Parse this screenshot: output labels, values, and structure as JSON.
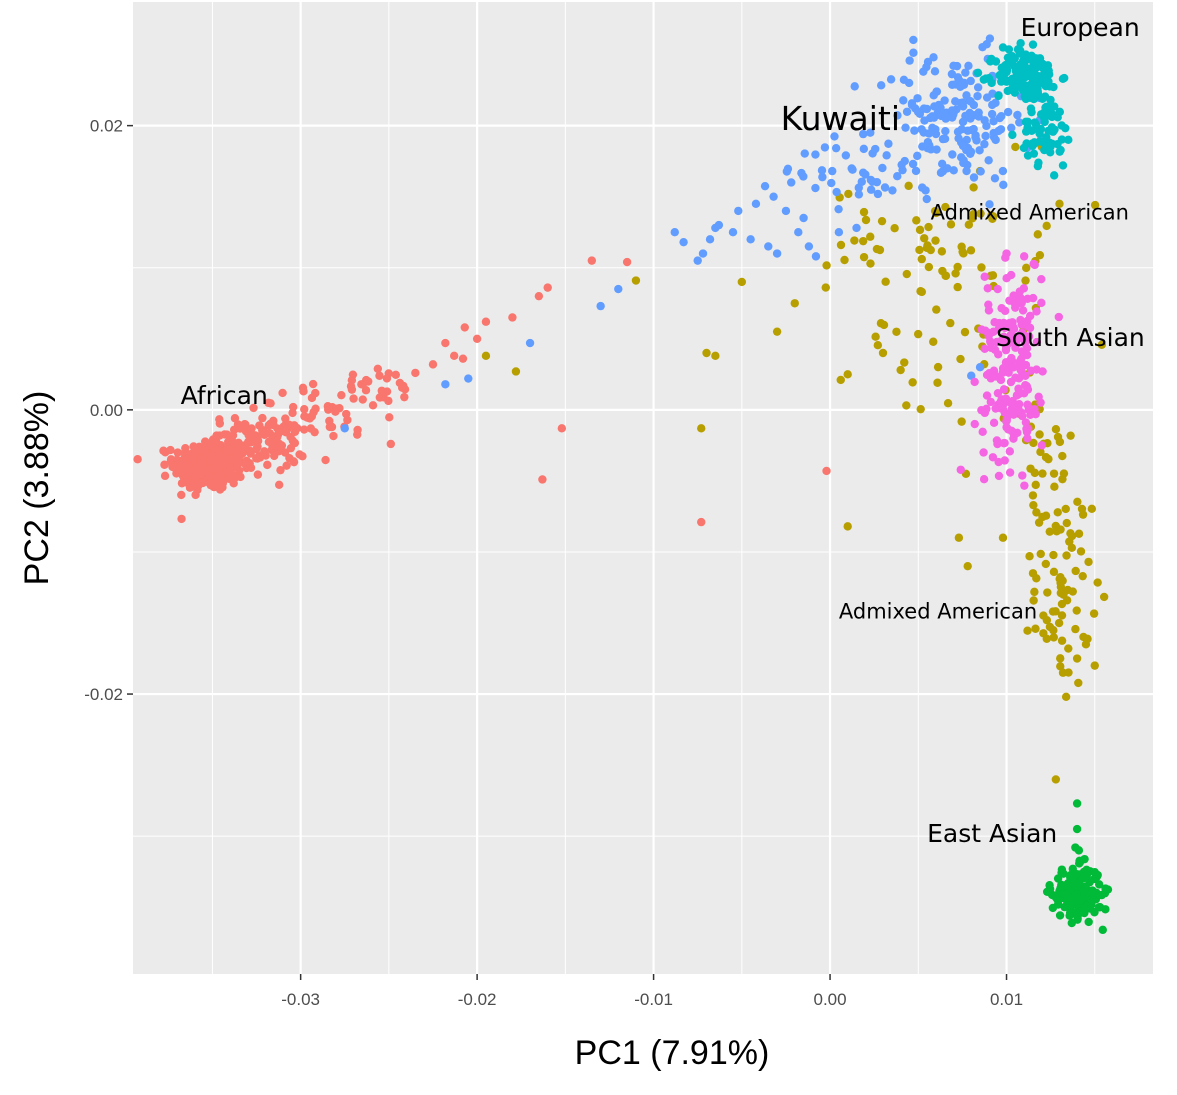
{
  "chart_data": {
    "type": "scatter",
    "title": "",
    "xlabel": "PC1 (7.91%)",
    "ylabel": "PC2 (3.88%)",
    "xlim": [
      -0.0395,
      0.0183
    ],
    "ylim": [
      -0.0397,
      0.0287
    ],
    "grid": true,
    "x_ticks": [
      -0.03,
      -0.02,
      -0.01,
      0.0,
      0.01
    ],
    "x_tick_labels": [
      "-0.03",
      "-0.02",
      "-0.01",
      "0.00",
      "0.01"
    ],
    "y_ticks": [
      -0.02,
      0.0,
      0.02
    ],
    "y_tick_labels": [
      "-0.02",
      "0.00",
      "0.02"
    ],
    "series": [
      {
        "name": "African",
        "color": "#F8766D",
        "clusters": [
          {
            "cx": -0.0352,
            "cy": -0.0039,
            "sx": 0.001,
            "sy": 0.0009,
            "n": 320
          },
          {
            "cx": -0.0325,
            "cy": -0.0024,
            "sx": 0.0014,
            "sy": 0.001,
            "n": 120
          },
          {
            "cx": -0.0285,
            "cy": -0.0003,
            "sx": 0.002,
            "sy": 0.001,
            "n": 45
          },
          {
            "cx": -0.0255,
            "cy": 0.0015,
            "sx": 0.0015,
            "sy": 0.0007,
            "n": 22
          }
        ],
        "points": [
          [
            -0.0218,
            0.0047
          ],
          [
            -0.0213,
            0.0038
          ],
          [
            -0.0225,
            0.0032
          ],
          [
            -0.0208,
            0.0036
          ],
          [
            -0.0235,
            0.0026
          ],
          [
            -0.0195,
            0.0062
          ],
          [
            -0.018,
            0.0065
          ],
          [
            -0.0165,
            0.008
          ],
          [
            -0.016,
            0.0086
          ],
          [
            -0.0135,
            0.0105
          ],
          [
            -0.0115,
            0.0104
          ],
          [
            -0.0152,
            -0.0013
          ],
          [
            -0.0163,
            -0.0049
          ],
          [
            -0.0073,
            -0.0079
          ],
          [
            -0.0002,
            -0.0043
          ],
          [
            -0.0207,
            0.0058
          ],
          [
            -0.02,
            0.005
          ]
        ],
        "label": "African"
      },
      {
        "name": "Kuwaiti",
        "color": "#619CFF",
        "clusters": [
          {
            "cx": 0.007,
            "cy": 0.0205,
            "sx": 0.0022,
            "sy": 0.0023,
            "n": 170
          },
          {
            "cx": 0.0022,
            "cy": 0.017,
            "sx": 0.0024,
            "sy": 0.0013,
            "n": 45
          }
        ],
        "points": [
          [
            0.0092,
            0.0235
          ],
          [
            -0.0042,
            0.0145
          ],
          [
            -0.0032,
            0.015
          ],
          [
            -0.0022,
            0.016
          ],
          [
            -0.0015,
            0.0135
          ],
          [
            -0.0025,
            0.014
          ],
          [
            -0.0052,
            0.014
          ],
          [
            -0.0055,
            0.0125
          ],
          [
            -0.0045,
            0.012
          ],
          [
            -0.0065,
            0.0128
          ],
          [
            -0.0088,
            0.0125
          ],
          [
            -0.0083,
            0.0118
          ],
          [
            -0.0068,
            0.012
          ],
          [
            -0.0072,
            0.011
          ],
          [
            -0.0075,
            0.0105
          ],
          [
            -0.0063,
            0.013
          ],
          [
            -0.0035,
            0.0115
          ],
          [
            -0.003,
            0.011
          ],
          [
            -0.0018,
            0.0125
          ],
          [
            -0.0012,
            0.0115
          ],
          [
            0.0005,
            0.0125
          ],
          [
            0.0015,
            0.0128
          ],
          [
            -0.0008,
            0.0108
          ],
          [
            -0.012,
            0.0085
          ],
          [
            -0.013,
            0.0073
          ],
          [
            -0.017,
            0.0047
          ],
          [
            -0.0205,
            0.0022
          ],
          [
            -0.0218,
            0.0018
          ],
          [
            -0.0275,
            -0.0013
          ],
          [
            0.0085,
            0.003
          ],
          [
            0.008,
            0.0024
          ]
        ],
        "label": "Kuwaiti"
      },
      {
        "name": "European",
        "color": "#00BFC4",
        "clusters": [
          {
            "cx": 0.0112,
            "cy": 0.0235,
            "sx": 0.0009,
            "sy": 0.0009,
            "n": 160
          },
          {
            "cx": 0.0122,
            "cy": 0.0195,
            "sx": 0.0007,
            "sy": 0.0011,
            "n": 60
          }
        ],
        "points": [
          [
            0.0098,
            0.0255
          ],
          [
            0.0108,
            0.0258
          ],
          [
            0.0115,
            0.0257
          ],
          [
            0.0135,
            0.019
          ],
          [
            0.0127,
            0.0165
          ],
          [
            0.0132,
            0.0172
          ]
        ],
        "label": "European"
      },
      {
        "name": "South Asian",
        "color": "#F564E3",
        "clusters": [
          {
            "cx": 0.0104,
            "cy": 0.0055,
            "sx": 0.0008,
            "sy": 0.0024,
            "n": 110
          },
          {
            "cx": 0.0103,
            "cy": 0.0,
            "sx": 0.0009,
            "sy": 0.002,
            "n": 80
          }
        ],
        "points": [
          [
            0.01,
            0.011
          ],
          [
            0.011,
            0.0108
          ],
          [
            0.0095,
            0.0085
          ],
          [
            0.009,
            0.007
          ],
          [
            0.0082,
            -0.001
          ],
          [
            0.0087,
            -0.003
          ],
          [
            0.012,
            -0.0025
          ],
          [
            0.0116,
            0.0102
          ]
        ],
        "label": "South Asian"
      },
      {
        "name": "Admixed American",
        "color": "#B79F00",
        "clusters": [
          {
            "cx": 0.006,
            "cy": 0.012,
            "sx": 0.003,
            "sy": 0.0018,
            "n": 60
          },
          {
            "cx": 0.007,
            "cy": 0.005,
            "sx": 0.0028,
            "sy": 0.003,
            "n": 40
          },
          {
            "cx": 0.0132,
            "cy": -0.0125,
            "sx": 0.0008,
            "sy": 0.0035,
            "n": 70
          },
          {
            "cx": 0.012,
            "cy": -0.004,
            "sx": 0.0009,
            "sy": 0.003,
            "n": 30
          }
        ],
        "points": [
          [
            -0.011,
            0.0091
          ],
          [
            -0.005,
            0.009
          ],
          [
            -0.002,
            0.0075
          ],
          [
            -0.003,
            0.0055
          ],
          [
            -0.0065,
            0.0038
          ],
          [
            -0.007,
            0.004
          ],
          [
            -0.0178,
            0.0027
          ],
          [
            -0.0195,
            0.0038
          ],
          [
            -0.0073,
            -0.0013
          ],
          [
            0.001,
            -0.0082
          ],
          [
            0.0077,
            -0.0045
          ],
          [
            0.0073,
            -0.009
          ],
          [
            0.0078,
            -0.011
          ],
          [
            0.0098,
            -0.009
          ],
          [
            0.0115,
            -0.0115
          ],
          [
            0.014,
            -0.0175
          ],
          [
            0.015,
            -0.018
          ],
          [
            0.0135,
            -0.0168
          ],
          [
            0.0145,
            -0.0165
          ],
          [
            0.0132,
            -0.0185
          ],
          [
            0.012,
            0.0185
          ],
          [
            0.013,
            0.0145
          ],
          [
            0.0105,
            0.0185
          ],
          [
            0.0085,
            0.0168
          ],
          [
            0.0052,
            0.0083
          ],
          [
            0.003,
            0.004
          ],
          [
            0.001,
            0.0025
          ],
          [
            0.004,
            0.0028
          ]
        ],
        "label": "Admixed American"
      },
      {
        "name": "East Asian",
        "color": "#00BA38",
        "clusters": [
          {
            "cx": 0.014,
            "cy": -0.034,
            "sx": 0.0007,
            "sy": 0.0009,
            "n": 170
          }
        ],
        "points": [
          [
            0.014,
            -0.0277
          ],
          [
            0.014,
            -0.0295
          ],
          [
            0.0139,
            -0.0308
          ],
          [
            0.0141,
            -0.031
          ],
          [
            0.0153,
            -0.035
          ],
          [
            0.0127,
            -0.0342
          ]
        ],
        "label": "East Asian"
      }
    ],
    "annotations": [
      {
        "text": "European",
        "x": 0.0108,
        "y": 0.0263,
        "color": "#000000",
        "size": "medium"
      },
      {
        "text": "Kuwaiti",
        "x": -0.0028,
        "y": 0.0197,
        "color": "#C00000",
        "size": "large"
      },
      {
        "text": "Admixed American",
        "x": 0.0057,
        "y": 0.0134,
        "color": "#000000",
        "size": "small"
      },
      {
        "text": "South Asian",
        "x": 0.0094,
        "y": 0.0045,
        "color": "#000000",
        "size": "medium"
      },
      {
        "text": "African",
        "x": -0.0368,
        "y": 0.0004,
        "color": "#000000",
        "size": "medium"
      },
      {
        "text": "Admixed American",
        "x": 0.0005,
        "y": -0.0147,
        "color": "#000000",
        "size": "small"
      },
      {
        "text": "East Asian",
        "x": 0.0055,
        "y": -0.0304,
        "color": "#000000",
        "size": "medium"
      }
    ]
  }
}
